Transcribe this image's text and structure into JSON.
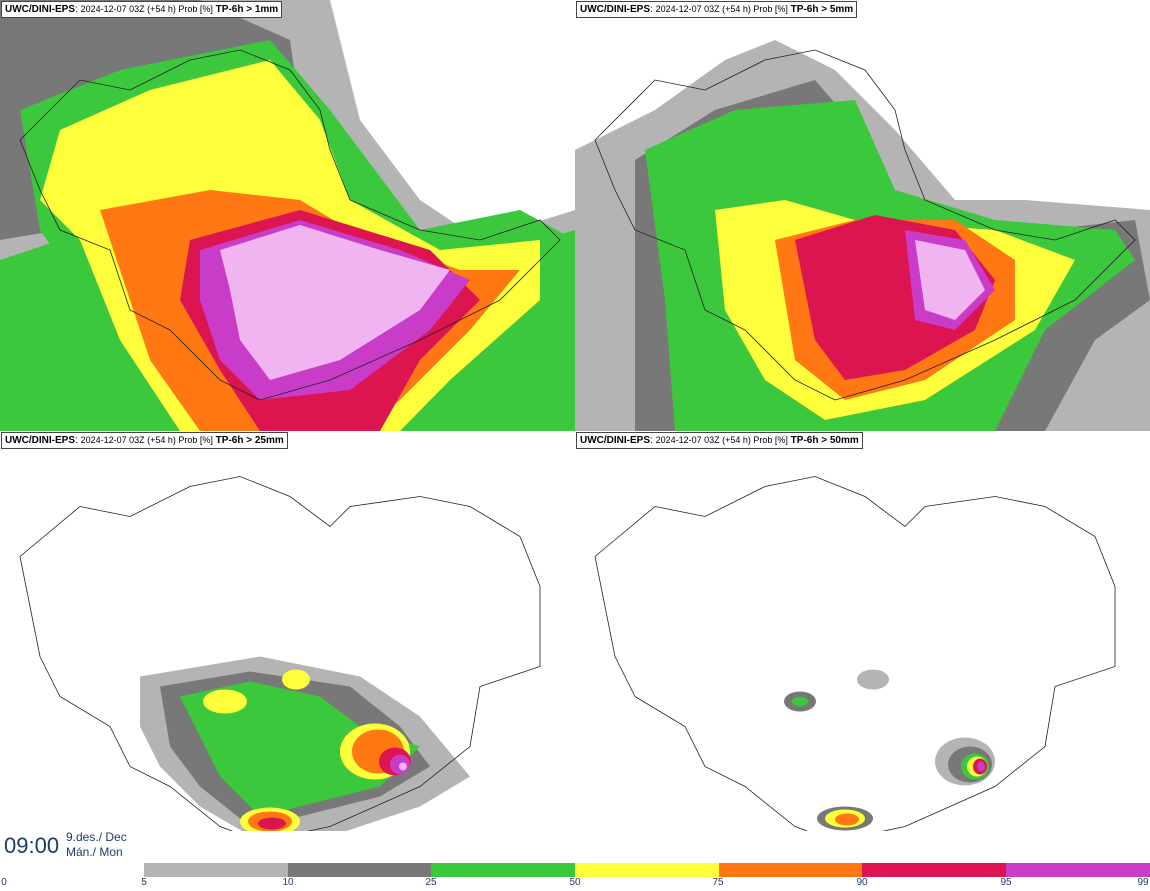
{
  "panels": [
    {
      "model": "UWC/DINI-EPS",
      "meta": "2024-12-07 03Z (+54 h) Prob [%]",
      "threshold": "TP-6h > 1mm"
    },
    {
      "model": "UWC/DINI-EPS",
      "meta": "2024-12-07 03Z (+54 h) Prob [%]",
      "threshold": "TP-6h > 5mm"
    },
    {
      "model": "UWC/DINI-EPS",
      "meta": "2024-12-07 03Z (+54 h) Prob [%]",
      "threshold": "TP-6h > 25mm"
    },
    {
      "model": "UWC/DINI-EPS",
      "meta": "2024-12-07 03Z (+54 h) Prob [%]",
      "threshold": "TP-6h > 50mm"
    }
  ],
  "valid": {
    "time": "09:00",
    "date_line1": "9.des./ Dec",
    "date_line2": "Mán./ Mon"
  },
  "legend": {
    "ticks": [
      "0",
      "5",
      "10",
      "25",
      "50",
      "75",
      "90",
      "95",
      "99"
    ],
    "colors": [
      "#b4b4b4",
      "#787878",
      "#3cc83c",
      "#ffff3c",
      "#ff7814",
      "#dc1450",
      "#c83cc8",
      "#f0b4f0"
    ]
  }
}
